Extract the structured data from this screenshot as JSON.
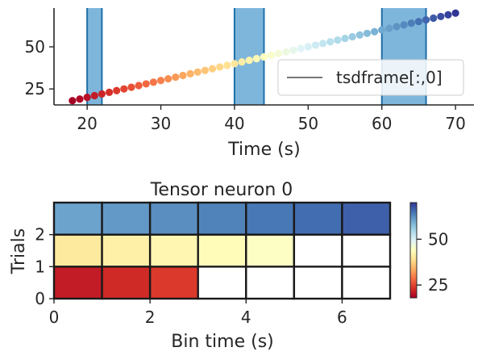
{
  "chart_data": [
    {
      "type": "scatter",
      "xlabel": "Time (s)",
      "ylabel": "",
      "xlim": [
        15.5,
        72.5
      ],
      "ylim": [
        15.5,
        73
      ],
      "xticks": [
        20,
        30,
        40,
        50,
        60,
        70
      ],
      "yticks": [
        25,
        50
      ],
      "colormap": "RdYlBu",
      "color_range": [
        18,
        70
      ],
      "points": [
        [
          18,
          18
        ],
        [
          19,
          19
        ],
        [
          20,
          20
        ],
        [
          21,
          21
        ],
        [
          22,
          22
        ],
        [
          23,
          23
        ],
        [
          24,
          24
        ],
        [
          25,
          25
        ],
        [
          26,
          26
        ],
        [
          27,
          27
        ],
        [
          28,
          28
        ],
        [
          29,
          29
        ],
        [
          30,
          30
        ],
        [
          31,
          31
        ],
        [
          32,
          32
        ],
        [
          33,
          33
        ],
        [
          34,
          34
        ],
        [
          35,
          35
        ],
        [
          36,
          36
        ],
        [
          37,
          37
        ],
        [
          38,
          38
        ],
        [
          39,
          39
        ],
        [
          40,
          40
        ],
        [
          41,
          41
        ],
        [
          42,
          42
        ],
        [
          43,
          43
        ],
        [
          44,
          44
        ],
        [
          45,
          45
        ],
        [
          46,
          46
        ],
        [
          47,
          47
        ],
        [
          48,
          48
        ],
        [
          49,
          49
        ],
        [
          50,
          50
        ],
        [
          51,
          51
        ],
        [
          52,
          52
        ],
        [
          53,
          53
        ],
        [
          54,
          54
        ],
        [
          55,
          55
        ],
        [
          56,
          56
        ],
        [
          57,
          57
        ],
        [
          58,
          58
        ],
        [
          59,
          59
        ],
        [
          60,
          60
        ],
        [
          61,
          61
        ],
        [
          62,
          62
        ],
        [
          63,
          63
        ],
        [
          64,
          64
        ],
        [
          65,
          65
        ],
        [
          66,
          66
        ],
        [
          67,
          67
        ],
        [
          68,
          68
        ],
        [
          69,
          69
        ],
        [
          70,
          70
        ]
      ],
      "intervals": [
        [
          20,
          22
        ],
        [
          40,
          44
        ],
        [
          60,
          66
        ]
      ],
      "interval_color": "#7eb6db",
      "interval_edge": "#1f6fa8",
      "legend": {
        "entries": [
          "tsdframe[:,0]"
        ],
        "position": "lower-right",
        "line_color": "#777777"
      }
    },
    {
      "type": "heatmap",
      "title": "Tensor neuron 0",
      "xlabel": "Bin time (s)",
      "ylabel": "Trials",
      "xlim": [
        0,
        7
      ],
      "ylim": [
        0,
        3
      ],
      "xticks": [
        0,
        2,
        4,
        6
      ],
      "yticks": [
        0,
        1,
        2
      ],
      "colormap": "RdYlBu",
      "rows": [
        [
          21,
          22.5,
          24,
          null,
          null,
          null,
          null
        ],
        [
          40.5,
          41.5,
          42.5,
          43.5,
          44.5,
          null,
          null
        ],
        [
          60.5,
          61.5,
          62.5,
          63.5,
          64.5,
          65.5,
          66.5
        ]
      ],
      "colorbar": {
        "range": [
          18,
          70
        ],
        "ticks": [
          25,
          50
        ]
      }
    }
  ]
}
